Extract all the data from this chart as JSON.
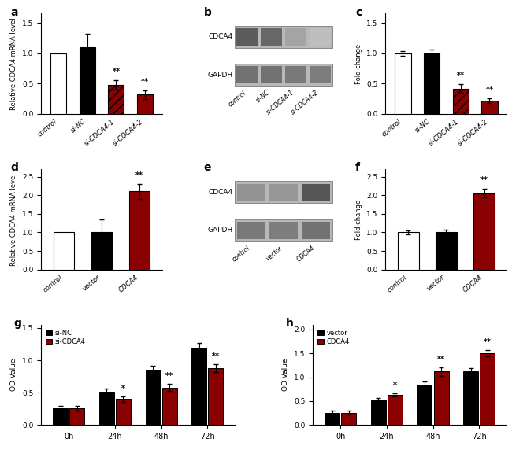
{
  "panel_a": {
    "categories": [
      "control",
      "si-NC",
      "si-CDCA4-1",
      "si-CDCA4-2"
    ],
    "values": [
      1.0,
      1.1,
      0.48,
      0.32
    ],
    "errors": [
      0.0,
      0.22,
      0.08,
      0.07
    ],
    "colors": [
      "white",
      "black",
      "#8B0000",
      "#8B0000"
    ],
    "hatches": [
      "",
      "",
      "///",
      ""
    ],
    "sig": [
      "",
      "",
      "**",
      "**"
    ],
    "ylabel": "Relative CDCA4 mRNA level",
    "ylim": [
      0,
      1.65
    ],
    "yticks": [
      0.0,
      0.5,
      1.0,
      1.5
    ],
    "label": "a"
  },
  "panel_c": {
    "categories": [
      "control",
      "si-NC",
      "si-CDCA4-1",
      "si-CDCA4-2"
    ],
    "values": [
      1.0,
      1.0,
      0.42,
      0.22
    ],
    "errors": [
      0.04,
      0.06,
      0.07,
      0.04
    ],
    "colors": [
      "white",
      "black",
      "#8B0000",
      "#8B0000"
    ],
    "hatches": [
      "",
      "",
      "///",
      ""
    ],
    "sig": [
      "",
      "",
      "**",
      "**"
    ],
    "ylabel": "Fold change",
    "ylim": [
      0,
      1.65
    ],
    "yticks": [
      0.0,
      0.5,
      1.0,
      1.5
    ],
    "label": "c"
  },
  "panel_d": {
    "categories": [
      "control",
      "vector",
      "CDCA4"
    ],
    "values": [
      1.0,
      1.0,
      2.1
    ],
    "errors": [
      0.0,
      0.35,
      0.2
    ],
    "colors": [
      "white",
      "black",
      "#8B0000"
    ],
    "hatches": [
      "",
      "",
      ""
    ],
    "sig": [
      "",
      "",
      "**"
    ],
    "ylabel": "Relative CDCA4 mRNA level",
    "ylim": [
      0,
      2.7
    ],
    "yticks": [
      0.0,
      0.5,
      1.0,
      1.5,
      2.0,
      2.5
    ],
    "label": "d"
  },
  "panel_f": {
    "categories": [
      "control",
      "vector",
      "CDCA4"
    ],
    "values": [
      1.0,
      1.0,
      2.05
    ],
    "errors": [
      0.06,
      0.07,
      0.12
    ],
    "colors": [
      "white",
      "black",
      "#8B0000"
    ],
    "hatches": [
      "",
      "",
      ""
    ],
    "sig": [
      "",
      "",
      "**"
    ],
    "ylabel": "Fold change",
    "ylim": [
      0,
      2.7
    ],
    "yticks": [
      0.0,
      0.5,
      1.0,
      1.5,
      2.0,
      2.5
    ],
    "label": "f"
  },
  "panel_g": {
    "timepoints": [
      "0h",
      "24h",
      "48h",
      "72h"
    ],
    "series1_label": "si-NC",
    "series1_color": "black",
    "series1_values": [
      0.26,
      0.51,
      0.86,
      1.2
    ],
    "series1_errors": [
      0.04,
      0.05,
      0.06,
      0.07
    ],
    "series2_label": "si-CDCA4",
    "series2_color": "#8B0000",
    "series2_values": [
      0.26,
      0.4,
      0.58,
      0.88
    ],
    "series2_errors": [
      0.04,
      0.04,
      0.05,
      0.06
    ],
    "sig": [
      "",
      "*",
      "**",
      "**"
    ],
    "ylabel": "OD Value",
    "ylim": [
      0,
      1.55
    ],
    "yticks": [
      0.0,
      0.5,
      1.0,
      1.5
    ],
    "label": "g"
  },
  "panel_h": {
    "timepoints": [
      "0h",
      "24h",
      "48h",
      "72h"
    ],
    "series1_label": "vector",
    "series1_color": "black",
    "series1_values": [
      0.26,
      0.51,
      0.84,
      1.12
    ],
    "series1_errors": [
      0.04,
      0.05,
      0.07,
      0.07
    ],
    "series2_label": "CDCA4",
    "series2_color": "#8B0000",
    "series2_values": [
      0.26,
      0.63,
      1.12,
      1.5
    ],
    "series2_errors": [
      0.04,
      0.04,
      0.09,
      0.07
    ],
    "sig": [
      "",
      "*",
      "**",
      "**"
    ],
    "ylabel": "OD Value",
    "ylim": [
      0,
      2.1
    ],
    "yticks": [
      0.0,
      0.5,
      1.0,
      1.5,
      2.0
    ],
    "label": "h"
  },
  "wb_b": {
    "label": "b",
    "bands": [
      "CDCA4",
      "GAPDH"
    ],
    "xlabels": [
      "control",
      "si-NC",
      "si-CDCA4-1",
      "si-CDCA4-2"
    ],
    "cdca4_intensities": [
      0.75,
      0.7,
      0.42,
      0.3
    ],
    "gapdh_intensities": [
      0.65,
      0.65,
      0.62,
      0.6
    ]
  },
  "wb_e": {
    "label": "e",
    "bands": [
      "CDCA4",
      "GAPDH"
    ],
    "xlabels": [
      "control",
      "vector",
      "CDCA4"
    ],
    "cdca4_intensities": [
      0.5,
      0.48,
      0.78
    ],
    "gapdh_intensities": [
      0.62,
      0.6,
      0.65
    ]
  }
}
